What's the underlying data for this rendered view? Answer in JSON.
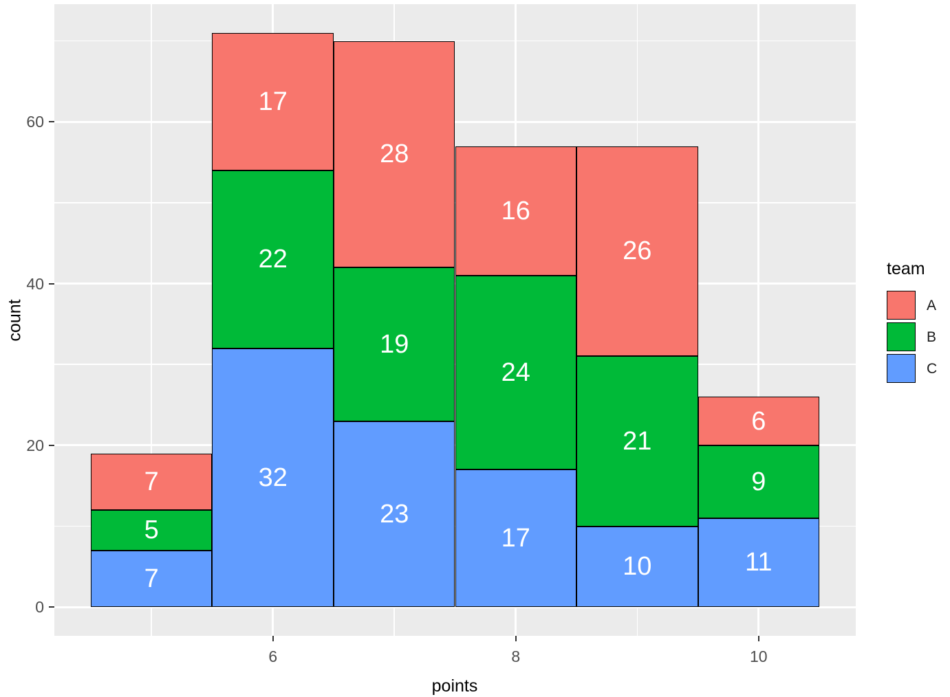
{
  "chart_data": {
    "type": "bar",
    "stacked": true,
    "title": "",
    "xlabel": "points",
    "ylabel": "count",
    "categories": [
      5,
      6,
      7,
      8,
      9,
      10
    ],
    "series": [
      {
        "name": "A",
        "color": "#F8766D",
        "values": [
          7,
          17,
          28,
          16,
          26,
          6
        ]
      },
      {
        "name": "B",
        "color": "#00BA38",
        "values": [
          5,
          22,
          19,
          24,
          21,
          9
        ]
      },
      {
        "name": "C",
        "color": "#619CFF",
        "values": [
          7,
          32,
          23,
          17,
          10,
          11
        ]
      }
    ],
    "stack_order_bottom_to_top": [
      "C",
      "B",
      "A"
    ],
    "bar_width": 1,
    "segment_labels_visible": true,
    "x_ticks": [
      6,
      8,
      10
    ],
    "y_ticks": [
      0,
      20,
      40,
      60
    ],
    "x_minor_gridlines": [
      5,
      7,
      9
    ],
    "y_minor_gridlines": [
      10,
      30,
      50,
      70
    ],
    "xlim": [
      4.5,
      10.5
    ],
    "ylim": [
      0,
      71
    ],
    "grid": true,
    "legend": {
      "title": "team",
      "position": "right",
      "entries": [
        {
          "label": "A",
          "color": "#F8766D"
        },
        {
          "label": "B",
          "color": "#00BA38"
        },
        {
          "label": "C",
          "color": "#619CFF"
        }
      ]
    }
  },
  "style": {
    "background": "#FFFFFF",
    "panel_background": "#EBEBEB",
    "grid_color": "#FFFFFF",
    "bar_outline_color": "#000000",
    "bar_label_color": "#FFFFFF",
    "tick_label_color": "#4D4D4D",
    "axis_title_color": "#000000",
    "legend_text_color": "#1A1A1A"
  }
}
